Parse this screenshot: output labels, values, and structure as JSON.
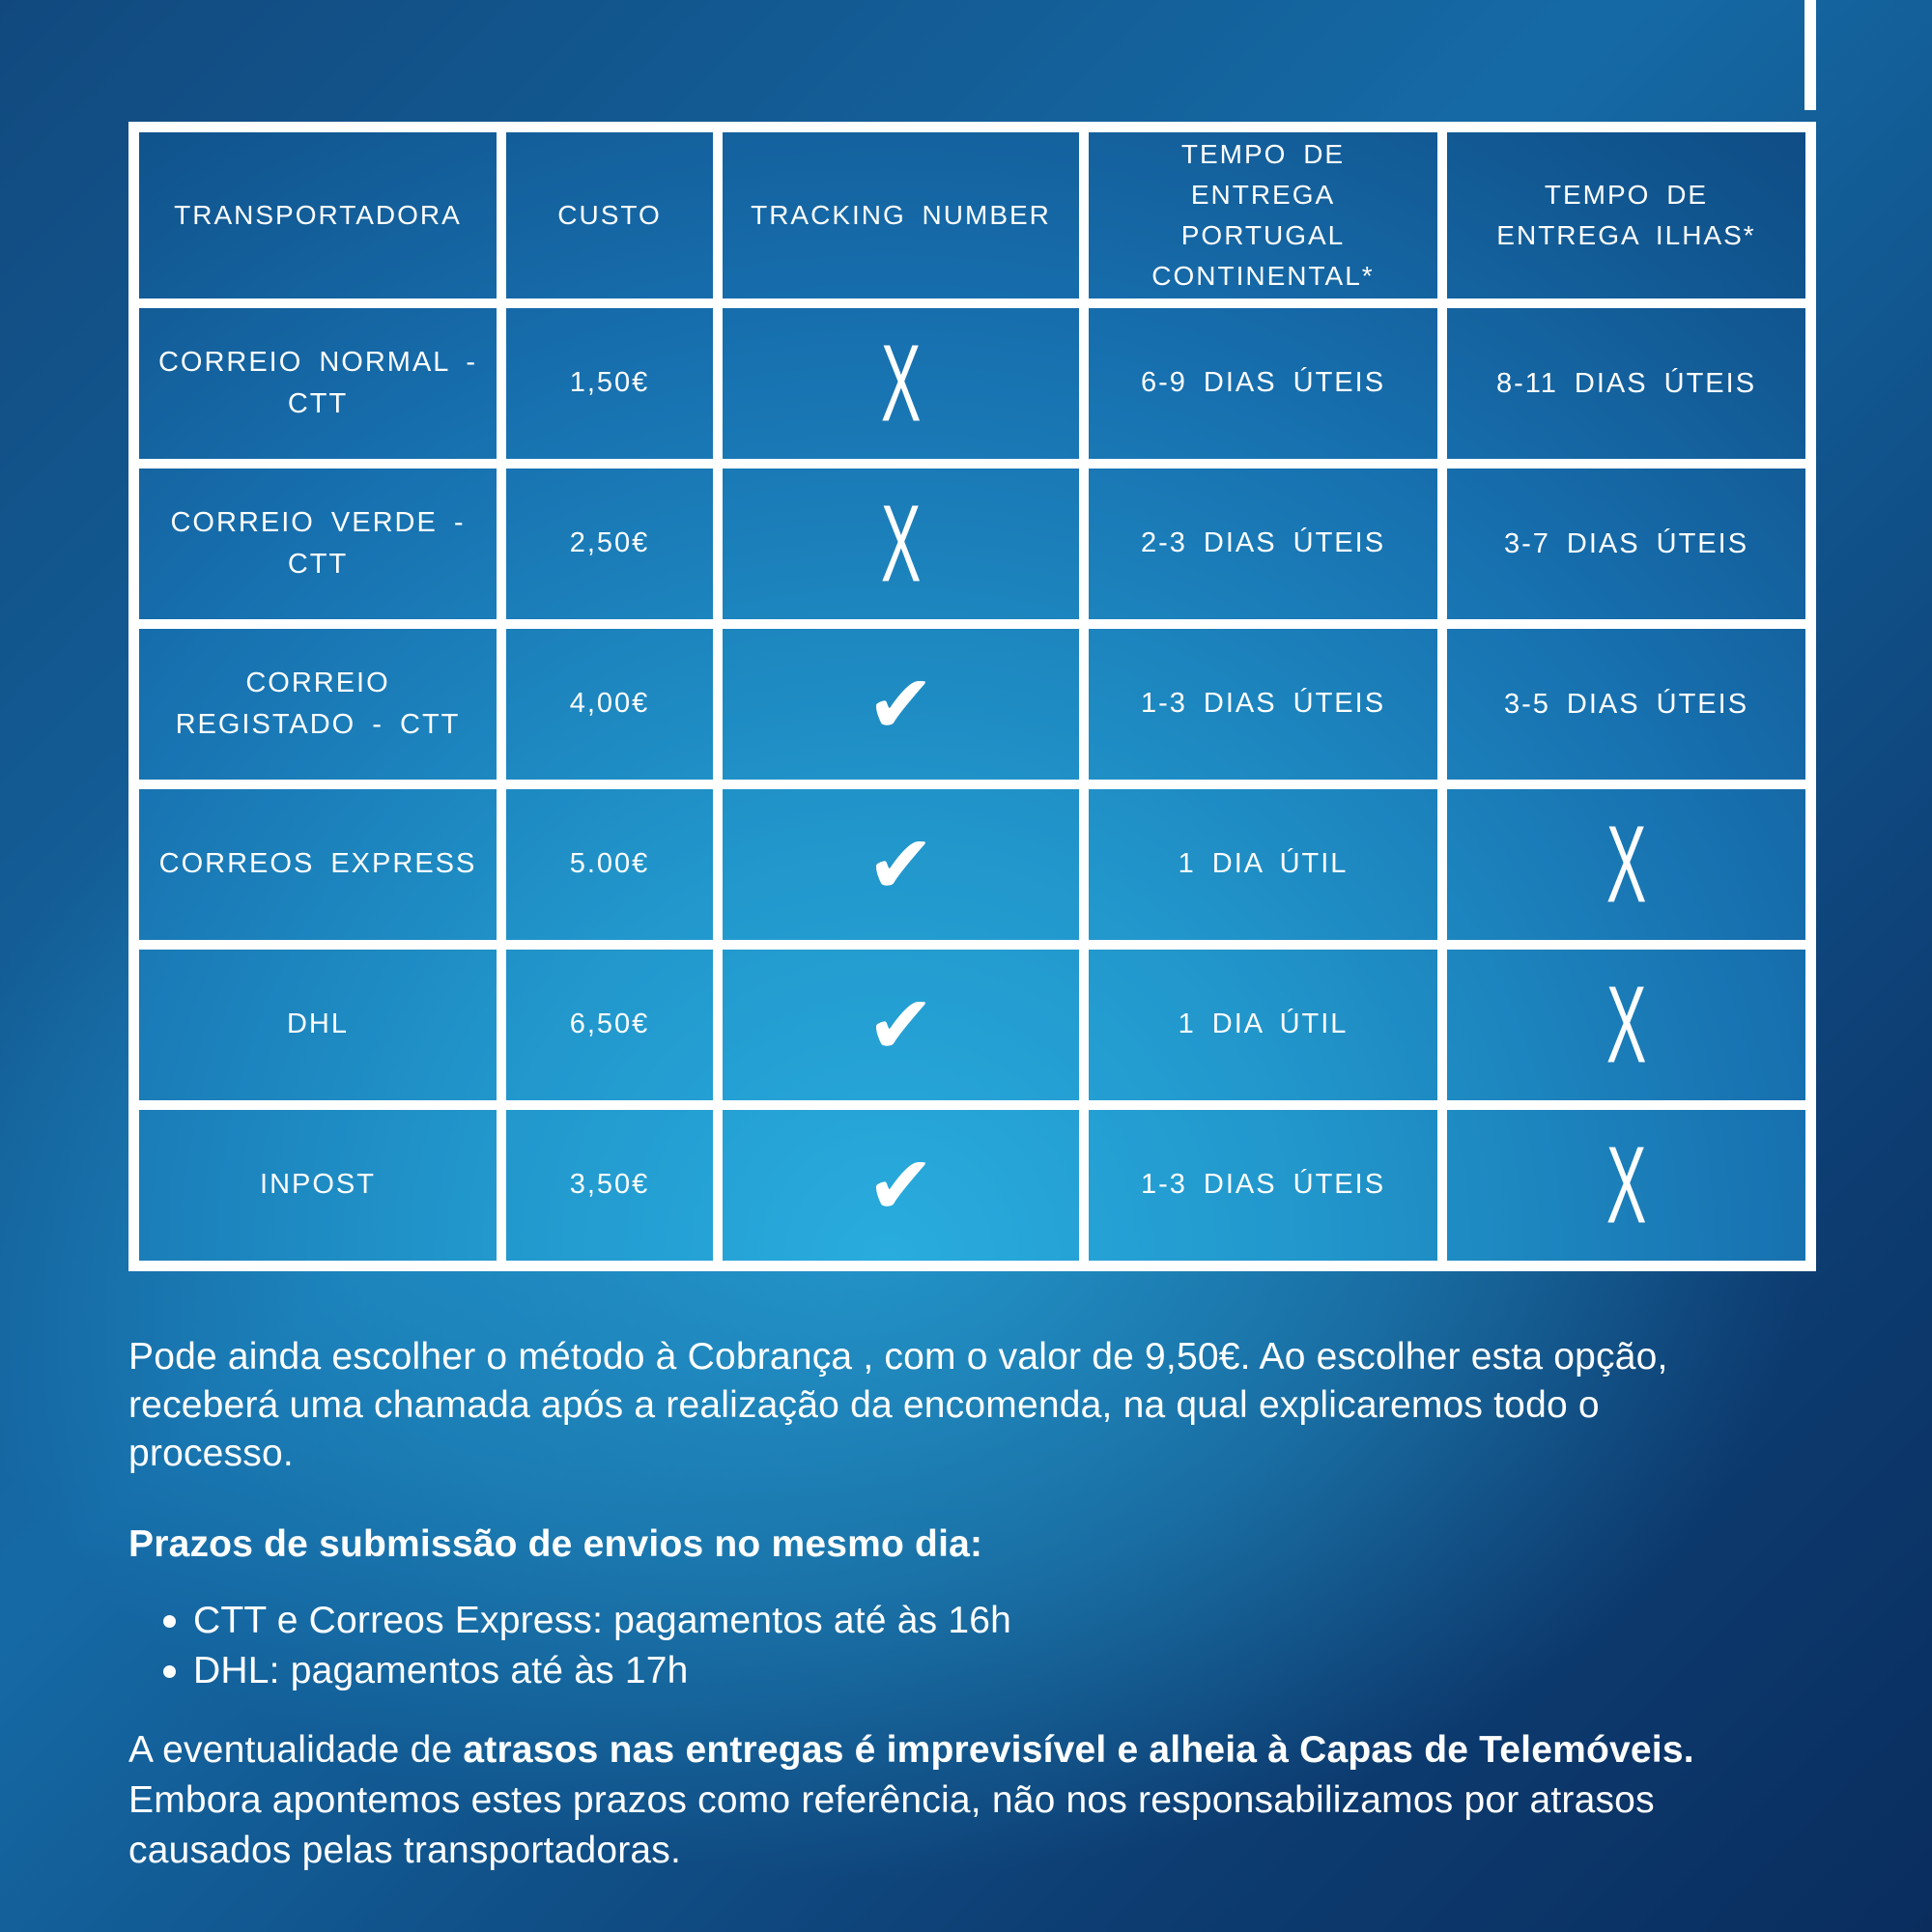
{
  "colors": {
    "background_glow": "#2AA8D9",
    "background_dark_corner": "#0A2D5E",
    "background_top_left": "#11497E",
    "table_border": "#FFFFFF",
    "text": "#FFFFFF"
  },
  "table": {
    "columns": [
      "TRANSPORTADORA",
      "CUSTO",
      "TRACKING NUMBER",
      "TEMPO DE ENTREGA PORTUGAL CONTINENTAL*",
      "TEMPO DE ENTREGA ILHAS*"
    ],
    "rows": [
      {
        "name": "CORREIO NORMAL - CTT",
        "cost": "1,50€",
        "tracking": "X",
        "tracking_type": "cross",
        "continental": "6-9 DIAS ÚTEIS",
        "islands": "8-11 DIAS ÚTEIS"
      },
      {
        "name": "CORREIO VERDE - CTT",
        "cost": "2,50€",
        "tracking": "X",
        "tracking_type": "cross",
        "continental": "2-3 DIAS ÚTEIS",
        "islands": "3-7 DIAS ÚTEIS"
      },
      {
        "name": "CORREIO REGISTADO - CTT",
        "cost": "4,00€",
        "tracking": "✔",
        "tracking_type": "check",
        "continental": "1-3 DIAS ÚTEIS",
        "islands": "3-5 DIAS ÚTEIS"
      },
      {
        "name": "CORREOS EXPRESS",
        "cost": "5.00€",
        "tracking": "✔",
        "tracking_type": "check",
        "continental": "1 DIA ÚTIL",
        "islands": "X",
        "islands_type": "cross"
      },
      {
        "name": "DHL",
        "cost": "6,50€",
        "tracking": "✔",
        "tracking_type": "check",
        "continental": "1 DIA ÚTIL",
        "islands": "X",
        "islands_type": "cross"
      },
      {
        "name": "INPOST",
        "cost": "3,50€",
        "tracking": "✔",
        "tracking_type": "check",
        "continental": "1-3 DIAS ÚTEIS",
        "islands": "X",
        "islands_type": "cross"
      }
    ]
  },
  "notes": {
    "para1_lines": [
      "Pode ainda escolher o método à Cobrança , com o valor de 9,50€. Ao escolher esta opção,",
      "receberá uma chamada após a realização da encomenda, na qual explicaremos todo o",
      "processo."
    ],
    "heading": "Prazos de submissão de envios no mesmo dia:",
    "bullets": [
      "CTT e Correos Express: pagamentos até às 16h",
      "DHL: pagamentos até às 17h"
    ],
    "para2": {
      "line1_pre": "A eventualidade de ",
      "line1_bold": "atrasos nas entregas é imprevisível e alheia à Capas de Telemóveis.",
      "lines_rest": [
        "Embora apontemos estes prazos como referência, não nos responsabilizamos por atrasos",
        "causados pelas transportadoras."
      ]
    }
  }
}
